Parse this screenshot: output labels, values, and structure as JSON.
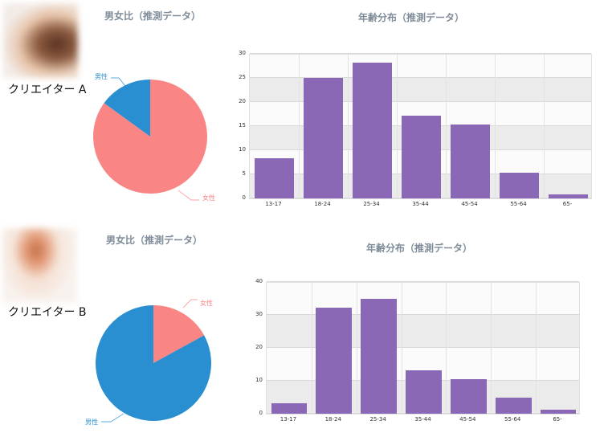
{
  "creators": [
    {
      "name": "クリエイター A",
      "avatar_colors": [
        "#f4eee9",
        "#e9c3a5",
        "#6b3d2a"
      ],
      "gender": {
        "title": "男女比（推測データ）",
        "labels": {
          "male": "男性",
          "female": "女性"
        },
        "male_pct": 15,
        "female_pct": 85
      },
      "age": {
        "title": "年齢分布（推測データ）",
        "y_ticks": [
          "30",
          "25",
          "20",
          "15",
          "10",
          "5",
          "0"
        ]
      }
    },
    {
      "name": "クリエイター B",
      "avatar_colors": [
        "#f7f1ec",
        "#e7a888",
        "#f4ddd0"
      ],
      "gender": {
        "title": "男女比（推測データ）",
        "labels": {
          "male": "男性",
          "female": "女性"
        },
        "male_pct": 83,
        "female_pct": 17
      },
      "age": {
        "title": "年齢分布（推測データ）",
        "y_ticks": [
          "40",
          "30",
          "20",
          "10",
          "0"
        ]
      }
    }
  ],
  "colors": {
    "male": "#2a8fd0",
    "female": "#f98585",
    "bar": "#8a68b5",
    "title": "#7f8c99"
  },
  "chart_data": [
    {
      "type": "pie",
      "title": "男女比（推測データ） - クリエイター A",
      "categories": [
        "男性",
        "女性"
      ],
      "values": [
        15,
        85
      ],
      "colors": [
        "#2a8fd0",
        "#f98585"
      ]
    },
    {
      "type": "bar",
      "title": "年齢分布（推測データ） - クリエイター A",
      "categories": [
        "13-17",
        "18-24",
        "25-34",
        "35-44",
        "45-54",
        "55-64",
        "65-"
      ],
      "values": [
        8.3,
        25.0,
        28.2,
        17.2,
        15.3,
        5.3,
        0.8
      ],
      "xlabel": "",
      "ylabel": "",
      "ylim": [
        0,
        30
      ],
      "yticks": [
        0,
        5,
        10,
        15,
        20,
        25,
        30
      ],
      "grid": true
    },
    {
      "type": "pie",
      "title": "男女比（推測データ） - クリエイター B",
      "categories": [
        "男性",
        "女性"
      ],
      "values": [
        83,
        17
      ],
      "colors": [
        "#2a8fd0",
        "#f98585"
      ]
    },
    {
      "type": "bar",
      "title": "年齢分布（推測データ） - クリエイター B",
      "categories": [
        "13-17",
        "18-24",
        "25-34",
        "35-44",
        "45-54",
        "55-64",
        "65-"
      ],
      "values": [
        3.2,
        32.2,
        34.9,
        13.2,
        10.5,
        4.9,
        1.3
      ],
      "xlabel": "",
      "ylabel": "",
      "ylim": [
        0,
        40
      ],
      "yticks": [
        0,
        10,
        20,
        30,
        40
      ],
      "grid": true
    }
  ]
}
